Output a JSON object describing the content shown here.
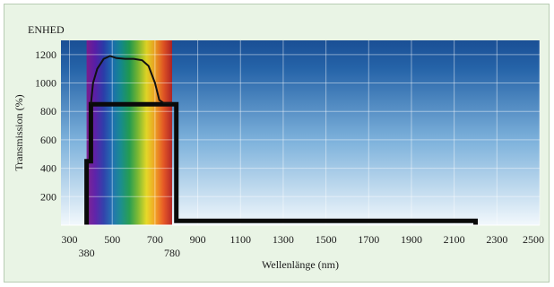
{
  "colors": {
    "panel_background": "#e9f4e5",
    "plot_gradient_top": "#1a4f95",
    "plot_gradient_mid": "#7fb3dc",
    "plot_gradient_bottom": "#f2f8fc",
    "bar_color": "#0a0a0a",
    "curve_color": "#111111",
    "gridline_color": "#ffffff"
  },
  "chart_data": {
    "type": "area",
    "title": "",
    "unit_label": "ENHED",
    "ylabel": "Transmission (%)",
    "xlabel": "Wellenlänge (nm)",
    "xlim": [
      260,
      2500
    ],
    "ylim": [
      0,
      1300
    ],
    "grid": true,
    "visible_spectrum": {
      "start_nm": 380,
      "end_nm": 780,
      "colors": [
        "#7e1a8c",
        "#5a1aa6",
        "#2a3aa8",
        "#1a6cb0",
        "#138a8a",
        "#1f9a4a",
        "#7ab82a",
        "#e6d81e",
        "#f4a11a",
        "#e8521c",
        "#b21e1e"
      ]
    },
    "x_ticks": [
      300,
      500,
      700,
      900,
      1100,
      1300,
      1500,
      1700,
      1900,
      2100,
      2300,
      2500
    ],
    "x_tick_labels": [
      "300",
      "500",
      "700",
      "900",
      "1100",
      "1300",
      "1500",
      "1700",
      "1900",
      "2100",
      "2300",
      "2500"
    ],
    "x_secondary_ticks": [
      380,
      780
    ],
    "x_secondary_tick_labels": [
      "380",
      "780"
    ],
    "y_ticks": [
      200,
      400,
      600,
      800,
      1000,
      1200
    ],
    "y_tick_labels": [
      "200",
      "400",
      "600",
      "800",
      "1000",
      "1200"
    ],
    "series": [
      {
        "kind": "bar_outline",
        "x": [
          380,
          380,
          400,
          400,
          780,
          780,
          800,
          800,
          2200,
          2200
        ],
        "y": [
          0,
          450,
          450,
          850,
          850,
          850,
          850,
          30,
          30,
          0
        ]
      },
      {
        "kind": "curve",
        "x": [
          400,
          410,
          430,
          460,
          490,
          520,
          560,
          600,
          640,
          670,
          700,
          720,
          740,
          780
        ],
        "y": [
          850,
          1000,
          1100,
          1170,
          1190,
          1175,
          1170,
          1170,
          1160,
          1120,
          1000,
          880,
          860,
          860
        ]
      }
    ]
  }
}
